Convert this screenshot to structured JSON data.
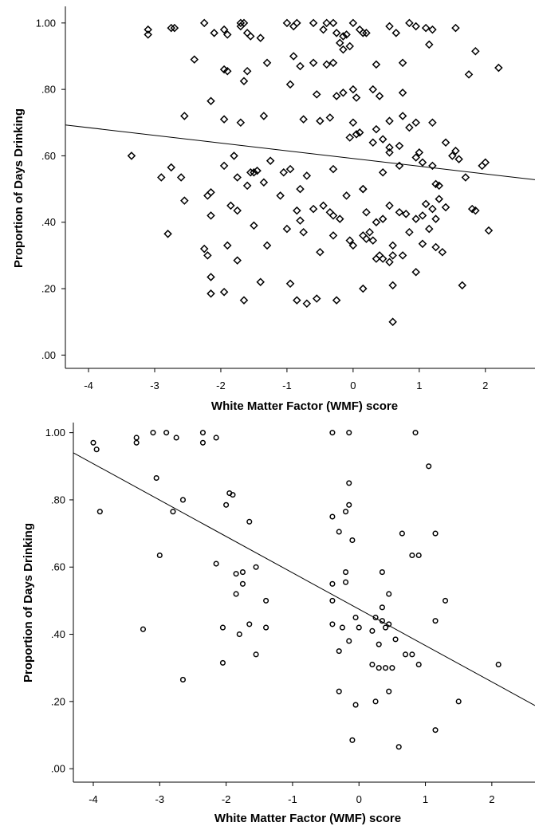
{
  "chart_data": [
    {
      "type": "scatter",
      "marker": "diamond",
      "title": "",
      "xlabel": "White Matter Factor (WMF) score",
      "ylabel": "Proportion of Days Drinking",
      "xlim": [
        -4.35,
        2.75
      ],
      "ylim": [
        -0.04,
        1.05
      ],
      "xticks": [
        -4,
        -3,
        -2,
        -1,
        0,
        1,
        2
      ],
      "xtick_labels": [
        "-4",
        "-3",
        "-2",
        "-1",
        "0",
        "1",
        "2"
      ],
      "yticks": [
        0.0,
        0.2,
        0.4,
        0.6,
        0.8,
        1.0
      ],
      "ytick_labels": [
        ".00",
        ".20",
        ".40",
        ".60",
        ".80",
        "1.00"
      ],
      "grid": false,
      "regression_line": {
        "x": [
          -4.35,
          2.75
        ],
        "y": [
          0.693,
          0.528
        ]
      },
      "points": [
        [
          -3.1,
          0.98
        ],
        [
          -3.1,
          0.965
        ],
        [
          -2.75,
          0.985
        ],
        [
          -2.7,
          0.985
        ],
        [
          -2.25,
          1.0
        ],
        [
          -2.1,
          0.97
        ],
        [
          -1.95,
          0.98
        ],
        [
          -1.9,
          0.965
        ],
        [
          -1.7,
          1.0
        ],
        [
          -1.7,
          0.99
        ],
        [
          -1.65,
          1.0
        ],
        [
          -1.6,
          0.97
        ],
        [
          -1.55,
          0.96
        ],
        [
          -1.4,
          0.955
        ],
        [
          -1.0,
          1.0
        ],
        [
          -0.9,
          0.99
        ],
        [
          -0.85,
          1.0
        ],
        [
          -0.6,
          1.0
        ],
        [
          -0.45,
          0.98
        ],
        [
          -0.4,
          1.0
        ],
        [
          -0.3,
          1.0
        ],
        [
          -0.25,
          0.97
        ],
        [
          -0.15,
          0.96
        ],
        [
          -0.1,
          0.965
        ],
        [
          0.0,
          1.0
        ],
        [
          0.1,
          0.98
        ],
        [
          0.15,
          0.97
        ],
        [
          0.2,
          0.97
        ],
        [
          0.55,
          0.99
        ],
        [
          0.65,
          0.97
        ],
        [
          0.85,
          1.0
        ],
        [
          0.95,
          0.99
        ],
        [
          1.1,
          0.985
        ],
        [
          1.2,
          0.98
        ],
        [
          1.55,
          0.985
        ],
        [
          -2.4,
          0.89
        ],
        [
          -1.95,
          0.86
        ],
        [
          -1.9,
          0.855
        ],
        [
          -1.6,
          0.855
        ],
        [
          -1.3,
          0.88
        ],
        [
          -0.9,
          0.9
        ],
        [
          -0.8,
          0.87
        ],
        [
          -0.6,
          0.88
        ],
        [
          -0.4,
          0.875
        ],
        [
          -0.3,
          0.88
        ],
        [
          -0.2,
          0.94
        ],
        [
          -0.15,
          0.92
        ],
        [
          -0.05,
          0.93
        ],
        [
          0.35,
          0.875
        ],
        [
          0.75,
          0.88
        ],
        [
          1.15,
          0.935
        ],
        [
          1.75,
          0.845
        ],
        [
          1.85,
          0.915
        ],
        [
          2.2,
          0.865
        ],
        [
          -2.15,
          0.765
        ],
        [
          -1.65,
          0.825
        ],
        [
          -0.95,
          0.815
        ],
        [
          -0.55,
          0.785
        ],
        [
          -0.25,
          0.78
        ],
        [
          -0.15,
          0.79
        ],
        [
          0.0,
          0.8
        ],
        [
          0.05,
          0.775
        ],
        [
          0.3,
          0.8
        ],
        [
          0.4,
          0.78
        ],
        [
          0.75,
          0.79
        ],
        [
          -0.75,
          0.71
        ],
        [
          -0.5,
          0.705
        ],
        [
          -0.35,
          0.715
        ],
        [
          0.0,
          0.7
        ],
        [
          0.1,
          0.67
        ],
        [
          0.35,
          0.68
        ],
        [
          0.45,
          0.65
        ],
        [
          0.55,
          0.625
        ],
        [
          0.7,
          0.63
        ],
        [
          0.85,
          0.685
        ],
        [
          0.95,
          0.7
        ],
        [
          -2.55,
          0.72
        ],
        [
          -1.95,
          0.71
        ],
        [
          -1.7,
          0.7
        ],
        [
          -1.35,
          0.72
        ],
        [
          -3.35,
          0.6
        ],
        [
          -2.9,
          0.535
        ],
        [
          -2.75,
          0.565
        ],
        [
          -2.55,
          0.465
        ],
        [
          -2.6,
          0.535
        ],
        [
          -1.8,
          0.6
        ],
        [
          -1.95,
          0.57
        ],
        [
          -1.75,
          0.535
        ],
        [
          -1.55,
          0.55
        ],
        [
          -1.45,
          0.555
        ],
        [
          -1.25,
          0.585
        ],
        [
          -0.95,
          0.56
        ],
        [
          -0.7,
          0.54
        ],
        [
          -0.3,
          0.56
        ],
        [
          -0.05,
          0.655
        ],
        [
          0.05,
          0.665
        ],
        [
          0.15,
          0.5
        ],
        [
          0.3,
          0.64
        ],
        [
          0.45,
          0.55
        ],
        [
          0.55,
          0.61
        ],
        [
          0.7,
          0.57
        ],
        [
          0.95,
          0.595
        ],
        [
          1.0,
          0.61
        ],
        [
          1.05,
          0.58
        ],
        [
          1.2,
          0.57
        ],
        [
          1.25,
          0.515
        ],
        [
          1.3,
          0.51
        ],
        [
          1.4,
          0.64
        ],
        [
          1.5,
          0.6
        ],
        [
          1.55,
          0.615
        ],
        [
          1.6,
          0.59
        ],
        [
          1.7,
          0.535
        ],
        [
          1.95,
          0.57
        ],
        [
          2.0,
          0.58
        ],
        [
          1.2,
          0.7
        ],
        [
          0.55,
          0.705
        ],
        [
          0.75,
          0.72
        ],
        [
          -1.05,
          0.55
        ],
        [
          -0.8,
          0.5
        ],
        [
          -2.2,
          0.48
        ],
        [
          -2.15,
          0.49
        ],
        [
          -1.85,
          0.45
        ],
        [
          -1.75,
          0.435
        ],
        [
          -1.6,
          0.51
        ],
        [
          -1.5,
          0.55
        ],
        [
          -1.35,
          0.52
        ],
        [
          -1.1,
          0.48
        ],
        [
          -0.85,
          0.435
        ],
        [
          -0.6,
          0.44
        ],
        [
          -0.45,
          0.45
        ],
        [
          -0.35,
          0.43
        ],
        [
          -0.3,
          0.42
        ],
        [
          -0.2,
          0.41
        ],
        [
          -0.1,
          0.48
        ],
        [
          0.15,
          0.5
        ],
        [
          0.2,
          0.43
        ],
        [
          0.35,
          0.4
        ],
        [
          0.45,
          0.41
        ],
        [
          0.55,
          0.45
        ],
        [
          0.7,
          0.43
        ],
        [
          0.8,
          0.425
        ],
        [
          0.95,
          0.41
        ],
        [
          1.05,
          0.42
        ],
        [
          1.1,
          0.455
        ],
        [
          1.2,
          0.44
        ],
        [
          1.25,
          0.41
        ],
        [
          1.3,
          0.47
        ],
        [
          1.4,
          0.445
        ],
        [
          1.8,
          0.44
        ],
        [
          1.85,
          0.435
        ],
        [
          -2.15,
          0.42
        ],
        [
          -0.8,
          0.405
        ],
        [
          0.25,
          0.37
        ],
        [
          -2.8,
          0.365
        ],
        [
          -2.25,
          0.32
        ],
        [
          -2.2,
          0.3
        ],
        [
          -1.9,
          0.33
        ],
        [
          -1.75,
          0.285
        ],
        [
          -1.5,
          0.39
        ],
        [
          -1.0,
          0.38
        ],
        [
          -0.75,
          0.37
        ],
        [
          -0.5,
          0.31
        ],
        [
          -0.3,
          0.36
        ],
        [
          -0.05,
          0.345
        ],
        [
          0.0,
          0.33
        ],
        [
          0.15,
          0.36
        ],
        [
          0.2,
          0.35
        ],
        [
          0.3,
          0.345
        ],
        [
          0.35,
          0.29
        ],
        [
          0.4,
          0.3
        ],
        [
          0.45,
          0.29
        ],
        [
          0.55,
          0.28
        ],
        [
          0.6,
          0.3
        ],
        [
          0.75,
          0.3
        ],
        [
          0.85,
          0.37
        ],
        [
          1.05,
          0.335
        ],
        [
          1.15,
          0.38
        ],
        [
          1.25,
          0.325
        ],
        [
          1.35,
          0.31
        ],
        [
          2.05,
          0.375
        ],
        [
          -1.3,
          0.33
        ],
        [
          0.6,
          0.33
        ],
        [
          -2.15,
          0.235
        ],
        [
          -2.15,
          0.185
        ],
        [
          -1.95,
          0.19
        ],
        [
          -1.65,
          0.165
        ],
        [
          -1.4,
          0.22
        ],
        [
          -0.95,
          0.215
        ],
        [
          -0.85,
          0.165
        ],
        [
          -0.7,
          0.155
        ],
        [
          -0.55,
          0.17
        ],
        [
          -0.25,
          0.165
        ],
        [
          0.15,
          0.2
        ],
        [
          0.6,
          0.21
        ],
        [
          0.95,
          0.25
        ],
        [
          1.65,
          0.21
        ],
        [
          0.6,
          0.1
        ]
      ]
    },
    {
      "type": "scatter",
      "marker": "circle",
      "title": "",
      "xlabel": "White Matter Factor (WMF) score",
      "ylabel": "Proportion of Days Drinking",
      "xlim": [
        -4.3,
        2.65
      ],
      "ylim": [
        -0.04,
        1.03
      ],
      "xticks": [
        -4,
        -3,
        -2,
        -1,
        0,
        1,
        2
      ],
      "xtick_labels": [
        "-4",
        "-3",
        "-2",
        "-1",
        "0",
        "1",
        "2"
      ],
      "yticks": [
        0.0,
        0.2,
        0.4,
        0.6,
        0.8,
        1.0
      ],
      "ytick_labels": [
        ".00",
        ".20",
        ".40",
        ".60",
        ".80",
        "1.00"
      ],
      "grid": false,
      "regression_line": {
        "x": [
          -4.3,
          2.65
        ],
        "y": [
          0.94,
          0.188
        ]
      },
      "points": [
        [
          -4.0,
          0.97
        ],
        [
          -3.95,
          0.95
        ],
        [
          -3.35,
          0.985
        ],
        [
          -3.35,
          0.97
        ],
        [
          -3.1,
          1.0
        ],
        [
          -2.9,
          1.0
        ],
        [
          -2.75,
          0.985
        ],
        [
          -2.35,
          1.0
        ],
        [
          -2.35,
          0.97
        ],
        [
          -2.15,
          0.985
        ],
        [
          -0.4,
          1.0
        ],
        [
          -0.15,
          1.0
        ],
        [
          0.85,
          1.0
        ],
        [
          -3.9,
          0.765
        ],
        [
          -3.05,
          0.865
        ],
        [
          -2.65,
          0.8
        ],
        [
          -2.8,
          0.765
        ],
        [
          -1.95,
          0.82
        ],
        [
          -1.9,
          0.815
        ],
        [
          -2.0,
          0.785
        ],
        [
          -1.65,
          0.735
        ],
        [
          -0.4,
          0.75
        ],
        [
          -0.2,
          0.765
        ],
        [
          -0.15,
          0.785
        ],
        [
          -0.15,
          0.85
        ],
        [
          -0.1,
          0.68
        ],
        [
          -0.3,
          0.705
        ],
        [
          1.05,
          0.9
        ],
        [
          1.15,
          0.7
        ],
        [
          0.65,
          0.7
        ],
        [
          -3.0,
          0.635
        ],
        [
          -2.15,
          0.61
        ],
        [
          -1.85,
          0.58
        ],
        [
          -1.75,
          0.585
        ],
        [
          -1.75,
          0.55
        ],
        [
          -1.55,
          0.6
        ],
        [
          -1.85,
          0.52
        ],
        [
          -0.4,
          0.55
        ],
        [
          -0.2,
          0.585
        ],
        [
          -0.2,
          0.555
        ],
        [
          0.35,
          0.585
        ],
        [
          0.45,
          0.52
        ],
        [
          0.35,
          0.48
        ],
        [
          0.8,
          0.635
        ],
        [
          0.9,
          0.635
        ],
        [
          -3.25,
          0.415
        ],
        [
          -2.05,
          0.42
        ],
        [
          -1.8,
          0.4
        ],
        [
          -1.65,
          0.43
        ],
        [
          -1.4,
          0.5
        ],
        [
          -1.4,
          0.42
        ],
        [
          -0.4,
          0.5
        ],
        [
          -0.4,
          0.43
        ],
        [
          -0.25,
          0.42
        ],
        [
          -0.15,
          0.38
        ],
        [
          -0.05,
          0.45
        ],
        [
          0.0,
          0.42
        ],
        [
          0.2,
          0.41
        ],
        [
          0.25,
          0.45
        ],
        [
          0.3,
          0.37
        ],
        [
          0.35,
          0.44
        ],
        [
          0.4,
          0.42
        ],
        [
          0.45,
          0.43
        ],
        [
          0.55,
          0.385
        ],
        [
          0.7,
          0.34
        ],
        [
          0.8,
          0.34
        ],
        [
          0.9,
          0.31
        ],
        [
          1.15,
          0.44
        ],
        [
          1.3,
          0.5
        ],
        [
          2.1,
          0.31
        ],
        [
          -2.65,
          0.265
        ],
        [
          -2.05,
          0.315
        ],
        [
          -1.55,
          0.34
        ],
        [
          -0.3,
          0.35
        ],
        [
          -0.3,
          0.23
        ],
        [
          0.2,
          0.31
        ],
        [
          0.3,
          0.3
        ],
        [
          0.4,
          0.3
        ],
        [
          0.5,
          0.3
        ],
        [
          0.45,
          0.23
        ],
        [
          0.25,
          0.2
        ],
        [
          -0.05,
          0.19
        ],
        [
          -0.1,
          0.085
        ],
        [
          0.6,
          0.065
        ],
        [
          1.15,
          0.115
        ],
        [
          1.5,
          0.2
        ]
      ]
    }
  ]
}
